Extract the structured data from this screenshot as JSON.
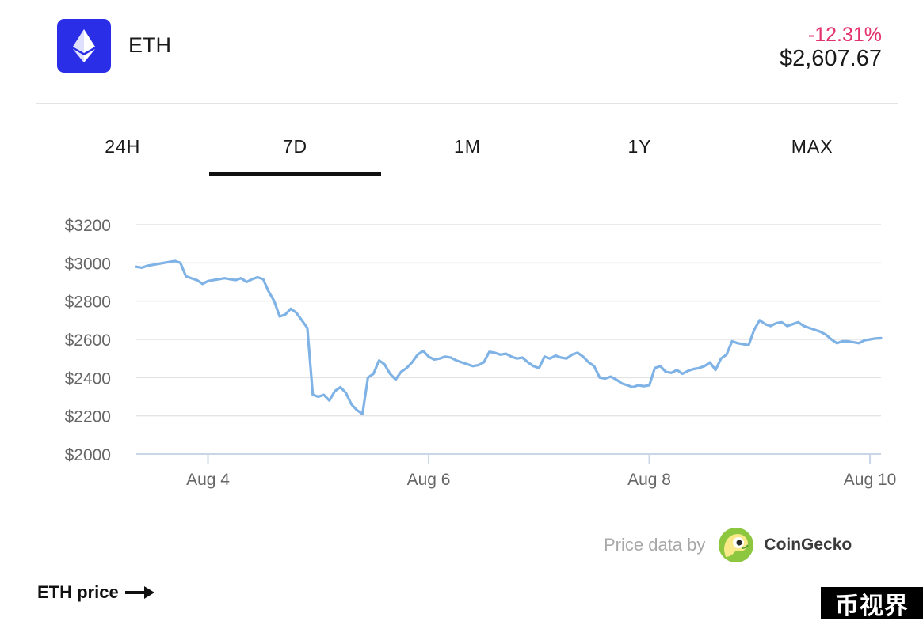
{
  "header": {
    "coin_name": "ETH",
    "change_percent": "-12.31%",
    "price": "$2,607.67",
    "logo_icon": "ethereum-icon",
    "logo_color": "#2a2ee6",
    "change_color": "#e4326e"
  },
  "tabs": [
    {
      "label": "24H",
      "active": false
    },
    {
      "label": "7D",
      "active": true
    },
    {
      "label": "1M",
      "active": false
    },
    {
      "label": "1Y",
      "active": false
    },
    {
      "label": "MAX",
      "active": false
    }
  ],
  "chart_data": {
    "type": "line",
    "line_color": "#7fb2e5",
    "grid": true,
    "ylim": [
      2000,
      3200
    ],
    "yticks": [
      2000,
      2200,
      2400,
      2600,
      2800,
      3000,
      3200
    ],
    "ytick_labels": [
      "$2000",
      "$2200",
      "$2400",
      "$2600",
      "$2800",
      "$3000",
      "$3200"
    ],
    "xlim": [
      3.35,
      10.1
    ],
    "xticks": [
      4,
      6,
      8,
      10
    ],
    "xtick_labels": [
      "Aug 4",
      "Aug 6",
      "Aug 8",
      "Aug 10"
    ],
    "series": [
      {
        "x": [
          3.35,
          3.4,
          3.45,
          3.5,
          3.55,
          3.6,
          3.65,
          3.7,
          3.75,
          3.8,
          3.85,
          3.9,
          3.95,
          4.0,
          4.05,
          4.1,
          4.15,
          4.2,
          4.25,
          4.3,
          4.35,
          4.4,
          4.45,
          4.5,
          4.55,
          4.6,
          4.65,
          4.7,
          4.75,
          4.8,
          4.85,
          4.9,
          4.95,
          5.0,
          5.05,
          5.1,
          5.15,
          5.2,
          5.25,
          5.3,
          5.35,
          5.4,
          5.45,
          5.5,
          5.55,
          5.6,
          5.65,
          5.7,
          5.75,
          5.8,
          5.85,
          5.9,
          5.95,
          6.0,
          6.05,
          6.1,
          6.15,
          6.2,
          6.25,
          6.3,
          6.35,
          6.4,
          6.45,
          6.5,
          6.55,
          6.6,
          6.65,
          6.7,
          6.75,
          6.8,
          6.85,
          6.9,
          6.95,
          7.0,
          7.05,
          7.1,
          7.15,
          7.2,
          7.25,
          7.3,
          7.35,
          7.4,
          7.45,
          7.5,
          7.55,
          7.6,
          7.65,
          7.7,
          7.75,
          7.8,
          7.85,
          7.9,
          7.95,
          8.0,
          8.05,
          8.1,
          8.15,
          8.2,
          8.25,
          8.3,
          8.35,
          8.4,
          8.45,
          8.5,
          8.55,
          8.6,
          8.65,
          8.7,
          8.75,
          8.8,
          8.85,
          8.9,
          8.95,
          9.0,
          9.05,
          9.1,
          9.15,
          9.2,
          9.25,
          9.3,
          9.35,
          9.4,
          9.45,
          9.5,
          9.55,
          9.6,
          9.65,
          9.7,
          9.75,
          9.8,
          9.85,
          9.9,
          9.95,
          10.0,
          10.05,
          10.1
        ],
        "y": [
          2980,
          2975,
          2985,
          2990,
          2995,
          3000,
          3005,
          3010,
          3000,
          2930,
          2920,
          2910,
          2890,
          2905,
          2910,
          2915,
          2920,
          2915,
          2910,
          2920,
          2900,
          2915,
          2925,
          2915,
          2850,
          2800,
          2720,
          2730,
          2760,
          2740,
          2700,
          2660,
          2310,
          2300,
          2310,
          2280,
          2330,
          2350,
          2320,
          2260,
          2230,
          2210,
          2400,
          2420,
          2490,
          2470,
          2420,
          2390,
          2430,
          2450,
          2480,
          2520,
          2540,
          2510,
          2495,
          2500,
          2510,
          2505,
          2490,
          2480,
          2470,
          2460,
          2465,
          2480,
          2535,
          2530,
          2520,
          2525,
          2510,
          2500,
          2505,
          2480,
          2460,
          2450,
          2510,
          2500,
          2515,
          2505,
          2500,
          2520,
          2530,
          2510,
          2480,
          2460,
          2400,
          2395,
          2405,
          2390,
          2370,
          2360,
          2350,
          2360,
          2355,
          2360,
          2450,
          2460,
          2430,
          2425,
          2440,
          2420,
          2435,
          2445,
          2450,
          2460,
          2480,
          2440,
          2500,
          2520,
          2590,
          2580,
          2575,
          2570,
          2650,
          2700,
          2680,
          2670,
          2685,
          2690,
          2670,
          2680,
          2690,
          2670,
          2660,
          2650,
          2640,
          2625,
          2600,
          2580,
          2590,
          2590,
          2585,
          2580,
          2595,
          2600,
          2605,
          2607
        ]
      }
    ]
  },
  "attribution": {
    "prefix": "Price data by",
    "provider": "CoinGecko",
    "provider_icon": "coingecko-icon"
  },
  "footer": {
    "link_label": "ETH price",
    "link_icon": "arrow-right-icon"
  },
  "watermark": "币视界"
}
